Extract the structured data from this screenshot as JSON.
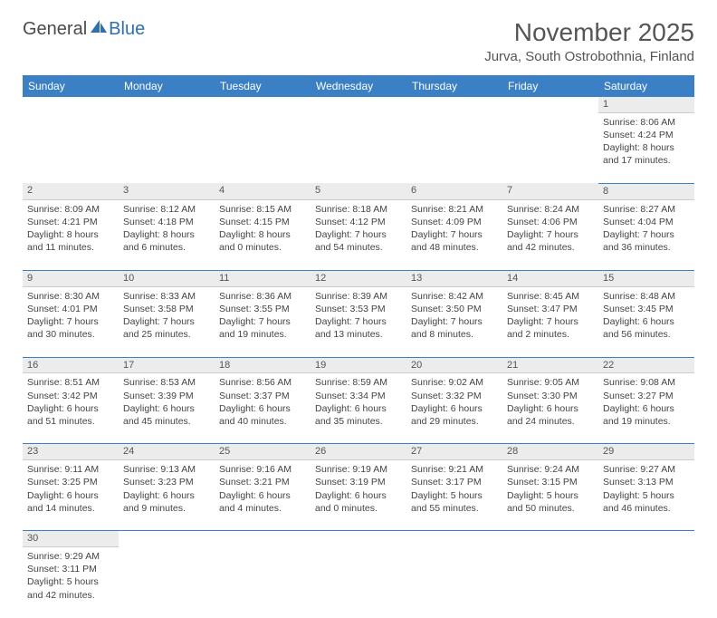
{
  "logo": {
    "text1": "General",
    "text2": "Blue"
  },
  "title": "November 2025",
  "location": "Jurva, South Ostrobothnia, Finland",
  "colors": {
    "header_bg": "#3b7fc4",
    "header_text": "#ffffff",
    "daynum_bg": "#ececec",
    "border": "#3b7fc4",
    "text": "#444444"
  },
  "weekdays": [
    "Sunday",
    "Monday",
    "Tuesday",
    "Wednesday",
    "Thursday",
    "Friday",
    "Saturday"
  ],
  "weeks": [
    [
      null,
      null,
      null,
      null,
      null,
      null,
      {
        "n": "1",
        "sr": "8:06 AM",
        "ss": "4:24 PM",
        "dl": "8 hours and 17 minutes."
      }
    ],
    [
      {
        "n": "2",
        "sr": "8:09 AM",
        "ss": "4:21 PM",
        "dl": "8 hours and 11 minutes."
      },
      {
        "n": "3",
        "sr": "8:12 AM",
        "ss": "4:18 PM",
        "dl": "8 hours and 6 minutes."
      },
      {
        "n": "4",
        "sr": "8:15 AM",
        "ss": "4:15 PM",
        "dl": "8 hours and 0 minutes."
      },
      {
        "n": "5",
        "sr": "8:18 AM",
        "ss": "4:12 PM",
        "dl": "7 hours and 54 minutes."
      },
      {
        "n": "6",
        "sr": "8:21 AM",
        "ss": "4:09 PM",
        "dl": "7 hours and 48 minutes."
      },
      {
        "n": "7",
        "sr": "8:24 AM",
        "ss": "4:06 PM",
        "dl": "7 hours and 42 minutes."
      },
      {
        "n": "8",
        "sr": "8:27 AM",
        "ss": "4:04 PM",
        "dl": "7 hours and 36 minutes."
      }
    ],
    [
      {
        "n": "9",
        "sr": "8:30 AM",
        "ss": "4:01 PM",
        "dl": "7 hours and 30 minutes."
      },
      {
        "n": "10",
        "sr": "8:33 AM",
        "ss": "3:58 PM",
        "dl": "7 hours and 25 minutes."
      },
      {
        "n": "11",
        "sr": "8:36 AM",
        "ss": "3:55 PM",
        "dl": "7 hours and 19 minutes."
      },
      {
        "n": "12",
        "sr": "8:39 AM",
        "ss": "3:53 PM",
        "dl": "7 hours and 13 minutes."
      },
      {
        "n": "13",
        "sr": "8:42 AM",
        "ss": "3:50 PM",
        "dl": "7 hours and 8 minutes."
      },
      {
        "n": "14",
        "sr": "8:45 AM",
        "ss": "3:47 PM",
        "dl": "7 hours and 2 minutes."
      },
      {
        "n": "15",
        "sr": "8:48 AM",
        "ss": "3:45 PM",
        "dl": "6 hours and 56 minutes."
      }
    ],
    [
      {
        "n": "16",
        "sr": "8:51 AM",
        "ss": "3:42 PM",
        "dl": "6 hours and 51 minutes."
      },
      {
        "n": "17",
        "sr": "8:53 AM",
        "ss": "3:39 PM",
        "dl": "6 hours and 45 minutes."
      },
      {
        "n": "18",
        "sr": "8:56 AM",
        "ss": "3:37 PM",
        "dl": "6 hours and 40 minutes."
      },
      {
        "n": "19",
        "sr": "8:59 AM",
        "ss": "3:34 PM",
        "dl": "6 hours and 35 minutes."
      },
      {
        "n": "20",
        "sr": "9:02 AM",
        "ss": "3:32 PM",
        "dl": "6 hours and 29 minutes."
      },
      {
        "n": "21",
        "sr": "9:05 AM",
        "ss": "3:30 PM",
        "dl": "6 hours and 24 minutes."
      },
      {
        "n": "22",
        "sr": "9:08 AM",
        "ss": "3:27 PM",
        "dl": "6 hours and 19 minutes."
      }
    ],
    [
      {
        "n": "23",
        "sr": "9:11 AM",
        "ss": "3:25 PM",
        "dl": "6 hours and 14 minutes."
      },
      {
        "n": "24",
        "sr": "9:13 AM",
        "ss": "3:23 PM",
        "dl": "6 hours and 9 minutes."
      },
      {
        "n": "25",
        "sr": "9:16 AM",
        "ss": "3:21 PM",
        "dl": "6 hours and 4 minutes."
      },
      {
        "n": "26",
        "sr": "9:19 AM",
        "ss": "3:19 PM",
        "dl": "6 hours and 0 minutes."
      },
      {
        "n": "27",
        "sr": "9:21 AM",
        "ss": "3:17 PM",
        "dl": "5 hours and 55 minutes."
      },
      {
        "n": "28",
        "sr": "9:24 AM",
        "ss": "3:15 PM",
        "dl": "5 hours and 50 minutes."
      },
      {
        "n": "29",
        "sr": "9:27 AM",
        "ss": "3:13 PM",
        "dl": "5 hours and 46 minutes."
      }
    ],
    [
      {
        "n": "30",
        "sr": "9:29 AM",
        "ss": "3:11 PM",
        "dl": "5 hours and 42 minutes."
      },
      null,
      null,
      null,
      null,
      null,
      null
    ]
  ],
  "labels": {
    "sunrise": "Sunrise:",
    "sunset": "Sunset:",
    "daylight": "Daylight:"
  }
}
